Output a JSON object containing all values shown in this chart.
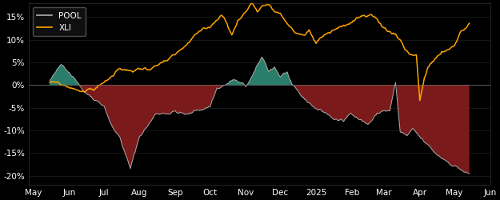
{
  "background_color": "#000000",
  "plot_bg_color": "#000000",
  "legend_labels": [
    "POOL",
    "XLI"
  ],
  "pool_color": "#b0b0b0",
  "xli_color": "#FFA500",
  "fill_above_color": "#2a7d6a",
  "fill_below_color": "#7b1a1a",
  "ylim": [
    -0.22,
    0.18
  ],
  "yticks": [
    -0.2,
    -0.15,
    -0.1,
    -0.05,
    0.0,
    0.05,
    0.1,
    0.15
  ],
  "n_points": 365
}
